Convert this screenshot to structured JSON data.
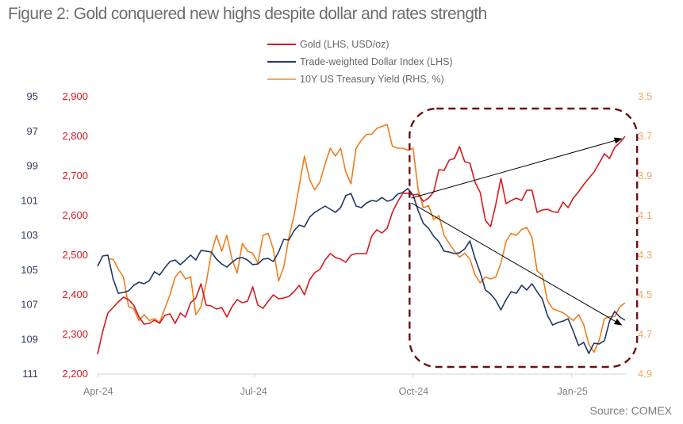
{
  "chart_data": {
    "type": "line",
    "title": "Figure 2: Gold conquered new highs despite dollar and rates strength",
    "source": "Source: COMEX",
    "x_axis": {
      "type": "date",
      "range": [
        "2024-04-01",
        "2025-02-05"
      ],
      "ticks": [
        {
          "date": "2024-04-01",
          "label": "Apr-24"
        },
        {
          "date": "2024-07-01",
          "label": "Jul-24"
        },
        {
          "date": "2024-10-01",
          "label": "Oct-24"
        },
        {
          "date": "2025-01-01",
          "label": "Jan-25"
        }
      ]
    },
    "y_axes": {
      "dollar": {
        "side": "left-outer",
        "range": [
          95,
          111
        ],
        "inverted": true,
        "ticks": [
          "95",
          "97",
          "99",
          "101",
          "103",
          "105",
          "107",
          "109",
          "111"
        ],
        "tick_values": [
          95,
          97,
          99,
          101,
          103,
          105,
          107,
          109,
          111
        ],
        "color": "#2e3b5e"
      },
      "gold": {
        "side": "left-inner",
        "range": [
          2200,
          2900
        ],
        "inverted": false,
        "ticks": [
          "2,900",
          "2,800",
          "2,700",
          "2,600",
          "2,500",
          "2,400",
          "2,300",
          "2,200"
        ],
        "tick_values": [
          2900,
          2800,
          2700,
          2600,
          2500,
          2400,
          2300,
          2200
        ],
        "color": "#d7191c"
      },
      "yield": {
        "side": "right",
        "range": [
          3.5,
          4.9
        ],
        "inverted": true,
        "ticks": [
          "3.5",
          "3.7",
          "3.9",
          "4.1",
          "4.3",
          "4.5",
          "4.7",
          "4.9"
        ],
        "tick_values": [
          3.5,
          3.7,
          3.9,
          4.1,
          4.3,
          4.5,
          4.7,
          4.9
        ],
        "color": "#f0a868"
      }
    },
    "legend_position": "top-center",
    "grid": false,
    "series": [
      {
        "name": "Gold (LHS, USD/oz)",
        "axis": "gold",
        "color": "#d7191c",
        "start": "2024-04-01",
        "step_days": 3,
        "values": [
          2250,
          2308,
          2354,
          2368,
          2382,
          2394,
          2388,
          2374,
          2344,
          2326,
          2328,
          2336,
          2328,
          2348,
          2352,
          2328,
          2354,
          2344,
          2380,
          2392,
          2428,
          2374,
          2372,
          2364,
          2368,
          2344,
          2370,
          2388,
          2380,
          2384,
          2420,
          2374,
          2366,
          2384,
          2400,
          2390,
          2392,
          2396,
          2408,
          2424,
          2400,
          2438,
          2456,
          2464,
          2488,
          2504,
          2494,
          2490,
          2482,
          2500,
          2504,
          2504,
          2504,
          2548,
          2564,
          2556,
          2568,
          2608,
          2634,
          2656,
          2656,
          2652,
          2654,
          2636,
          2644,
          2660,
          2716,
          2714,
          2740,
          2744,
          2774,
          2736,
          2732,
          2684,
          2658,
          2588,
          2572,
          2628,
          2694,
          2630,
          2638,
          2644,
          2638,
          2664,
          2664,
          2608,
          2614,
          2616,
          2610,
          2608,
          2634,
          2620,
          2644,
          2660,
          2678,
          2694,
          2710,
          2732,
          2756,
          2744,
          2772,
          2784,
          2800
        ]
      },
      {
        "name": "Trade-weighted Dollar Index (LHS)",
        "axis": "dollar",
        "color": "#1f3864",
        "start": "2024-04-01",
        "step_days": 3,
        "values": [
          104.78,
          104.19,
          104.14,
          105.51,
          106.34,
          106.29,
          106.2,
          105.88,
          105.7,
          105.79,
          105.61,
          105.1,
          105.29,
          104.87,
          104.51,
          104.42,
          104.69,
          104.42,
          104.14,
          104.42,
          103.87,
          103.91,
          103.96,
          104.37,
          104.65,
          104.83,
          104.55,
          104.33,
          104.28,
          104.42,
          104.69,
          104.65,
          104.37,
          104.33,
          104.51,
          103.96,
          103.23,
          103.27,
          102.73,
          102.41,
          102.5,
          101.95,
          101.67,
          101.49,
          101.31,
          101.49,
          101.67,
          101.4,
          100.71,
          100.58,
          101.31,
          101.4,
          101.13,
          100.99,
          101.03,
          100.81,
          101.03,
          100.94,
          100.62,
          100.53,
          100.3,
          100.67,
          101.58,
          102.31,
          102.59,
          103.05,
          103.37,
          103.91,
          103.96,
          104.05,
          104.01,
          103.78,
          103.32,
          104.33,
          105.15,
          106.15,
          106.38,
          106.75,
          107.3,
          106.7,
          106.25,
          106.34,
          105.88,
          106.15,
          105.79,
          106.25,
          106.66,
          107.62,
          108.17,
          108.03,
          107.94,
          107.81,
          108.53,
          109.35,
          109.17,
          109.81,
          109.22,
          109.26,
          109.08,
          107.94,
          107.39,
          107.71,
          107.89
        ]
      },
      {
        "name": "10Y US Treasury Yield (RHS, %)",
        "axis": "yield",
        "color": "#ee7d1e",
        "legend_color": "#f0a868",
        "start": "2024-04-07",
        "step_days": 3,
        "values": [
          4.32,
          4.32,
          4.37,
          4.41,
          4.56,
          4.57,
          4.63,
          4.6,
          4.63,
          4.62,
          4.64,
          4.57,
          4.5,
          4.41,
          4.38,
          4.42,
          4.41,
          4.6,
          4.56,
          4.44,
          4.29,
          4.2,
          4.28,
          4.2,
          4.32,
          4.39,
          4.24,
          4.28,
          4.29,
          4.34,
          4.2,
          4.19,
          4.27,
          4.43,
          4.36,
          4.21,
          4.1,
          3.95,
          3.8,
          3.92,
          3.97,
          3.93,
          3.84,
          3.76,
          3.8,
          3.76,
          3.88,
          3.94,
          3.76,
          3.72,
          3.69,
          3.69,
          3.66,
          3.65,
          3.64,
          3.75,
          3.76,
          3.76,
          3.77,
          3.76,
          3.97,
          4.06,
          4.05,
          4.12,
          4.1,
          4.2,
          4.24,
          4.28,
          4.31,
          4.29,
          4.32,
          4.4,
          4.44,
          4.41,
          4.42,
          4.41,
          4.34,
          4.23,
          4.19,
          4.2,
          4.17,
          4.16,
          4.21,
          4.38,
          4.4,
          4.53,
          4.57,
          4.58,
          4.59,
          4.61,
          4.63,
          4.6,
          4.65,
          4.75,
          4.79,
          4.73,
          4.62,
          4.61,
          4.61,
          4.56,
          4.54
        ]
      }
    ],
    "annotations": {
      "highlight_box": {
        "style": "dashed rounded rectangle",
        "color": "#6b0f12",
        "from_date": "2024-09-29",
        "to_date": "2025-02-08",
        "gold_top": 2870,
        "gold_bottom": 2218
      },
      "arrows": [
        {
          "name": "gold-trend-arrow",
          "axis": "gold",
          "from": {
            "date": "2024-09-30",
            "value": 2644
          },
          "to": {
            "date": "2025-01-30",
            "value": 2794
          },
          "color": "#000000"
        },
        {
          "name": "dollar-trend-arrow",
          "axis": "dollar",
          "from": {
            "date": "2024-09-30",
            "value": 101.13
          },
          "to": {
            "date": "2025-01-30",
            "value": 108.17
          },
          "color": "#000000"
        }
      ]
    }
  }
}
